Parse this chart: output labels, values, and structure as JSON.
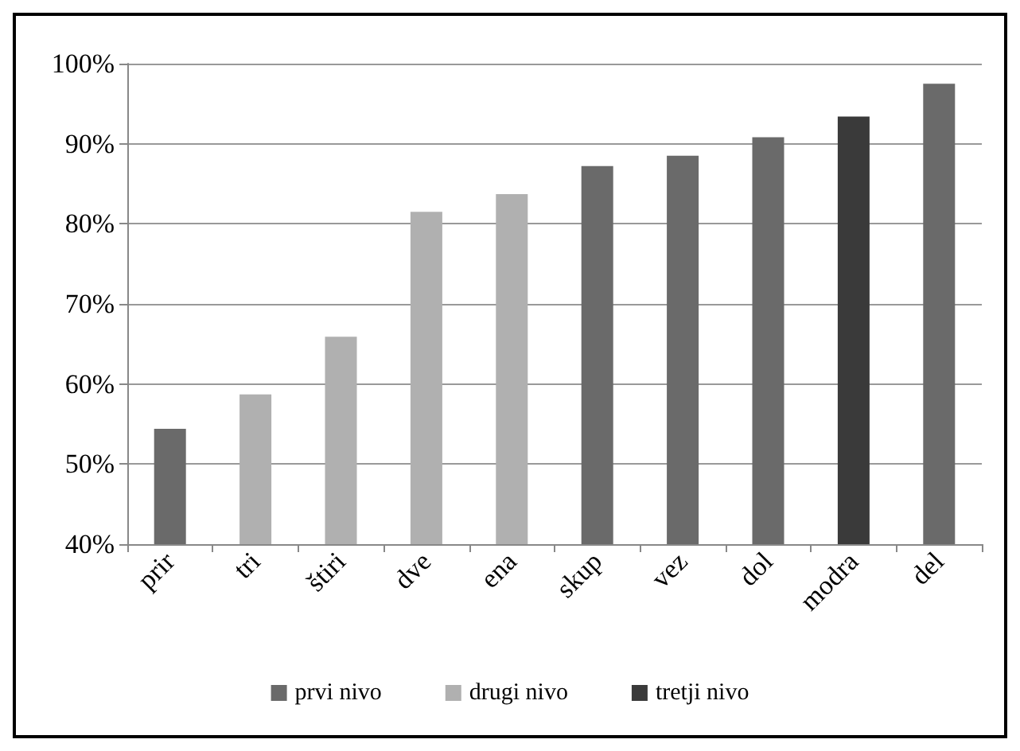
{
  "chart_data": {
    "type": "bar",
    "categories": [
      "prir",
      "tri",
      "štiri",
      "dve",
      "ena",
      "skup",
      "vez",
      "dol",
      "modra",
      "del"
    ],
    "series": [
      {
        "name": "prvi nivo",
        "color": "#6a6a6a",
        "values": [
          54.4,
          null,
          null,
          null,
          null,
          87.2,
          88.5,
          90.8,
          null,
          97.5
        ]
      },
      {
        "name": "drugi nivo",
        "color": "#b0b0b0",
        "values": [
          null,
          58.7,
          65.9,
          81.5,
          83.7,
          null,
          null,
          null,
          null,
          null
        ]
      },
      {
        "name": "tretji nivo",
        "color": "#3a3a3a",
        "values": [
          null,
          null,
          null,
          null,
          null,
          null,
          null,
          null,
          93.4,
          null
        ]
      }
    ],
    "ylim": [
      40,
      100
    ],
    "yticks": [
      {
        "value": 40,
        "label": "40%"
      },
      {
        "value": 50,
        "label": "50%"
      },
      {
        "value": 60,
        "label": "60%"
      },
      {
        "value": 70,
        "label": "70%"
      },
      {
        "value": 80,
        "label": "80%"
      },
      {
        "value": 90,
        "label": "90%"
      },
      {
        "value": 100,
        "label": "100%"
      }
    ],
    "grid": "y",
    "legend": "bottom"
  }
}
